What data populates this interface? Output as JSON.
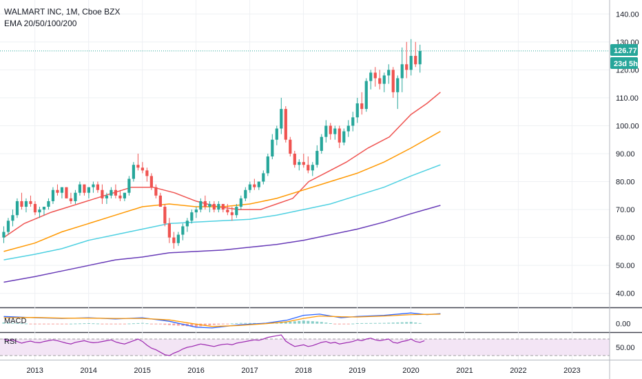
{
  "header": {
    "title": "WALMART INC, 1M, Cboe BZX",
    "indicator": "EMA 20/50/100/200"
  },
  "tags": {
    "last_price": "126.77",
    "countdown": "23d 5h"
  },
  "panes": {
    "macd_label": "MACD",
    "rsi_label": "RSI"
  },
  "colors": {
    "up": "#26a69a",
    "down": "#ef5350",
    "ema20": "#ef5350",
    "ema50": "#ff9800",
    "ema100": "#4dd0e1",
    "ema200": "#673ab7",
    "macd_line": "#2962ff",
    "signal_line": "#ff9800",
    "rsi_line": "#9c27b0",
    "rsi_band": "#f3e5f5",
    "tag": "#26a69a"
  },
  "chart_data": {
    "type": "candlestick",
    "title": "WALMART INC, 1M, Cboe BZX",
    "x_ticks": [
      "2013",
      "2014",
      "2015",
      "2016",
      "2017",
      "2018",
      "2019",
      "2020",
      "2021",
      "2022",
      "2023"
    ],
    "y_ticks": [
      "140.00",
      "130.00",
      "120.00",
      "110.00",
      "100.00",
      "90.00",
      "80.00",
      "70.00",
      "60.00",
      "50.00",
      "40.00"
    ],
    "ylim": [
      35,
      145
    ],
    "xlim": [
      2012.35,
      2023.7
    ],
    "last_price": 126.77,
    "candles_t0": 2012.42,
    "candle_step": 0.08333,
    "candles": [
      [
        60,
        64,
        58,
        62
      ],
      [
        62,
        67,
        61,
        66
      ],
      [
        66,
        70,
        64,
        68
      ],
      [
        68,
        74,
        67,
        73
      ],
      [
        73,
        76,
        70,
        71
      ],
      [
        71,
        74,
        69,
        73
      ],
      [
        73,
        75,
        71,
        72
      ],
      [
        72,
        73,
        68,
        69
      ],
      [
        69,
        71,
        67,
        70
      ],
      [
        70,
        71,
        68,
        71
      ],
      [
        71,
        74,
        70,
        73
      ],
      [
        73,
        78,
        72,
        77
      ],
      [
        77,
        79,
        75,
        76
      ],
      [
        76,
        78,
        74,
        78
      ],
      [
        78,
        78,
        74,
        74
      ],
      [
        74,
        76,
        72,
        73
      ],
      [
        73,
        77,
        72,
        76
      ],
      [
        76,
        80,
        75,
        79
      ],
      [
        79,
        79,
        75,
        76
      ],
      [
        76,
        78,
        74,
        78
      ],
      [
        78,
        80,
        76,
        79
      ],
      [
        79,
        80,
        76,
        77
      ],
      [
        77,
        79,
        72,
        74
      ],
      [
        74,
        76,
        72,
        75
      ],
      [
        75,
        78,
        74,
        77
      ],
      [
        77,
        79,
        74,
        75
      ],
      [
        75,
        77,
        73,
        74
      ],
      [
        74,
        76,
        73,
        76
      ],
      [
        76,
        82,
        75,
        81
      ],
      [
        81,
        87,
        80,
        86
      ],
      [
        86,
        90,
        84,
        85
      ],
      [
        85,
        87,
        83,
        84
      ],
      [
        84,
        85,
        80,
        82
      ],
      [
        82,
        83,
        77,
        78
      ],
      [
        78,
        79,
        74,
        75
      ],
      [
        75,
        76,
        71,
        71
      ],
      [
        71,
        72,
        64,
        65
      ],
      [
        65,
        67,
        58,
        60
      ],
      [
        60,
        62,
        56,
        58
      ],
      [
        58,
        62,
        57,
        61
      ],
      [
        61,
        65,
        59,
        64
      ],
      [
        64,
        67,
        62,
        66
      ],
      [
        66,
        70,
        65,
        69
      ],
      [
        69,
        71,
        67,
        70
      ],
      [
        70,
        74,
        69,
        73
      ],
      [
        73,
        75,
        70,
        71
      ],
      [
        71,
        73,
        69,
        72
      ],
      [
        72,
        73,
        69,
        70
      ],
      [
        70,
        73,
        69,
        72
      ],
      [
        72,
        72,
        69,
        70
      ],
      [
        70,
        72,
        68,
        69
      ],
      [
        69,
        71,
        66,
        68
      ],
      [
        68,
        72,
        67,
        71
      ],
      [
        71,
        75,
        70,
        74
      ],
      [
        74,
        78,
        73,
        77
      ],
      [
        77,
        80,
        76,
        79
      ],
      [
        79,
        81,
        77,
        78
      ],
      [
        78,
        80,
        77,
        80
      ],
      [
        80,
        84,
        79,
        83
      ],
      [
        83,
        90,
        82,
        89
      ],
      [
        89,
        97,
        88,
        95
      ],
      [
        95,
        100,
        93,
        99
      ],
      [
        99,
        110,
        97,
        106
      ],
      [
        106,
        107,
        94,
        95
      ],
      [
        95,
        96,
        89,
        90
      ],
      [
        90,
        91,
        85,
        86
      ],
      [
        86,
        88,
        84,
        87
      ],
      [
        87,
        90,
        85,
        86
      ],
      [
        86,
        89,
        83,
        84
      ],
      [
        84,
        87,
        82,
        86
      ],
      [
        86,
        93,
        85,
        91
      ],
      [
        91,
        97,
        90,
        96
      ],
      [
        96,
        102,
        94,
        100
      ],
      [
        100,
        101,
        95,
        97
      ],
      [
        97,
        100,
        95,
        99
      ],
      [
        99,
        100,
        92,
        94
      ],
      [
        94,
        99,
        93,
        98
      ],
      [
        98,
        102,
        96,
        100
      ],
      [
        100,
        105,
        98,
        103
      ],
      [
        103,
        110,
        101,
        108
      ],
      [
        108,
        112,
        104,
        106
      ],
      [
        106,
        117,
        105,
        116
      ],
      [
        116,
        120,
        113,
        119
      ],
      [
        119,
        121,
        114,
        117
      ],
      [
        117,
        120,
        113,
        115
      ],
      [
        115,
        119,
        112,
        118
      ],
      [
        118,
        122,
        115,
        120
      ],
      [
        120,
        121,
        110,
        112
      ],
      [
        112,
        118,
        106,
        117
      ],
      [
        117,
        128,
        112,
        122
      ],
      [
        122,
        130,
        117,
        120
      ],
      [
        120,
        131,
        118,
        125
      ],
      [
        125,
        130,
        121,
        122
      ],
      [
        122,
        129,
        119,
        126.77
      ]
    ],
    "ema": [
      {
        "name": "EMA 20",
        "points": [
          [
            2012.42,
            60
          ],
          [
            2012.8,
            65
          ],
          [
            2013.3,
            69
          ],
          [
            2013.8,
            72
          ],
          [
            2014.3,
            75
          ],
          [
            2014.8,
            78
          ],
          [
            2015.2,
            78
          ],
          [
            2015.6,
            76
          ],
          [
            2016.0,
            73
          ],
          [
            2016.4,
            71
          ],
          [
            2016.8,
            70
          ],
          [
            2017.2,
            70
          ],
          [
            2017.5,
            72
          ],
          [
            2017.8,
            74
          ],
          [
            2018.1,
            80
          ],
          [
            2018.4,
            83
          ],
          [
            2018.8,
            87
          ],
          [
            2019.2,
            92
          ],
          [
            2019.6,
            96
          ],
          [
            2020.0,
            104
          ],
          [
            2020.3,
            108
          ],
          [
            2020.55,
            112
          ]
        ]
      },
      {
        "name": "EMA 50",
        "points": [
          [
            2012.42,
            55
          ],
          [
            2013.0,
            58
          ],
          [
            2013.5,
            62
          ],
          [
            2014.0,
            65
          ],
          [
            2014.5,
            68
          ],
          [
            2015.0,
            71
          ],
          [
            2015.5,
            72
          ],
          [
            2016.0,
            71
          ],
          [
            2016.5,
            71
          ],
          [
            2017.0,
            72
          ],
          [
            2017.5,
            74
          ],
          [
            2018.0,
            77
          ],
          [
            2018.5,
            80
          ],
          [
            2019.0,
            83
          ],
          [
            2019.5,
            87
          ],
          [
            2020.0,
            92
          ],
          [
            2020.55,
            98
          ]
        ]
      },
      {
        "name": "EMA 100",
        "points": [
          [
            2012.42,
            52
          ],
          [
            2013.0,
            54
          ],
          [
            2013.5,
            56
          ],
          [
            2014.0,
            59
          ],
          [
            2014.5,
            61
          ],
          [
            2015.0,
            63
          ],
          [
            2015.5,
            65
          ],
          [
            2016.0,
            65.5
          ],
          [
            2016.5,
            66
          ],
          [
            2017.0,
            66.5
          ],
          [
            2017.5,
            68
          ],
          [
            2018.0,
            70
          ],
          [
            2018.5,
            72
          ],
          [
            2019.0,
            75
          ],
          [
            2019.5,
            78
          ],
          [
            2020.0,
            82
          ],
          [
            2020.55,
            86
          ]
        ]
      },
      {
        "name": "EMA 200",
        "points": [
          [
            2012.42,
            44
          ],
          [
            2013.0,
            46
          ],
          [
            2013.5,
            48
          ],
          [
            2014.0,
            50
          ],
          [
            2014.5,
            52
          ],
          [
            2015.0,
            53
          ],
          [
            2015.5,
            54.5
          ],
          [
            2016.0,
            55
          ],
          [
            2016.5,
            55.5
          ],
          [
            2017.0,
            56.5
          ],
          [
            2017.5,
            57.5
          ],
          [
            2018.0,
            59
          ],
          [
            2018.5,
            61
          ],
          [
            2019.0,
            63
          ],
          [
            2019.5,
            65.5
          ],
          [
            2020.0,
            68.5
          ],
          [
            2020.55,
            71.5
          ]
        ]
      }
    ],
    "macd": {
      "ylim": [
        -3,
        6
      ],
      "tick": "0.00",
      "line": [
        [
          2012.42,
          3
        ],
        [
          2013.0,
          2.5
        ],
        [
          2013.5,
          2.2
        ],
        [
          2014.0,
          2.5
        ],
        [
          2014.5,
          2.0
        ],
        [
          2015.0,
          2.5
        ],
        [
          2015.5,
          1.0
        ],
        [
          2016.0,
          -1.5
        ],
        [
          2016.3,
          -1.8
        ],
        [
          2016.8,
          -0.5
        ],
        [
          2017.3,
          0.2
        ],
        [
          2017.7,
          1.5
        ],
        [
          2018.0,
          3.5
        ],
        [
          2018.3,
          4.0
        ],
        [
          2018.7,
          2.5
        ],
        [
          2019.0,
          3.0
        ],
        [
          2019.5,
          3.5
        ],
        [
          2020.0,
          4.5
        ],
        [
          2020.3,
          3.8
        ],
        [
          2020.55,
          4.2
        ]
      ],
      "signal": [
        [
          2012.42,
          2.5
        ],
        [
          2013.0,
          2.6
        ],
        [
          2013.5,
          2.3
        ],
        [
          2014.0,
          2.3
        ],
        [
          2014.5,
          2.2
        ],
        [
          2015.0,
          2.2
        ],
        [
          2015.5,
          1.6
        ],
        [
          2016.0,
          -0.2
        ],
        [
          2016.3,
          -1.2
        ],
        [
          2016.8,
          -0.8
        ],
        [
          2017.3,
          0.0
        ],
        [
          2017.7,
          0.8
        ],
        [
          2018.0,
          2.2
        ],
        [
          2018.3,
          3.2
        ],
        [
          2018.7,
          2.9
        ],
        [
          2019.0,
          2.8
        ],
        [
          2019.5,
          3.2
        ],
        [
          2020.0,
          3.8
        ],
        [
          2020.3,
          3.9
        ],
        [
          2020.55,
          4.0
        ]
      ]
    },
    "rsi": {
      "ylim": [
        20,
        85
      ],
      "tick": "50.00",
      "upper": 70,
      "lower": 30,
      "values": [
        70,
        66,
        68,
        64,
        60,
        63,
        65,
        62,
        61,
        64,
        66,
        68,
        66,
        63,
        60,
        58,
        62,
        64,
        66,
        63,
        61,
        62,
        64,
        66,
        68,
        63,
        60,
        58,
        62,
        66,
        70,
        64,
        55,
        48,
        44,
        38,
        32,
        30,
        36,
        40,
        46,
        50,
        52,
        55,
        58,
        56,
        54,
        52,
        55,
        57,
        58,
        56,
        60,
        62,
        64,
        66,
        68,
        67,
        70,
        74,
        76,
        78,
        80,
        65,
        58,
        52,
        54,
        56,
        52,
        54,
        58,
        62,
        64,
        60,
        62,
        58,
        60,
        62,
        64,
        68,
        66,
        70,
        72,
        68,
        66,
        68,
        70,
        62,
        60,
        64,
        66,
        70,
        64,
        62,
        66
      ]
    }
  }
}
